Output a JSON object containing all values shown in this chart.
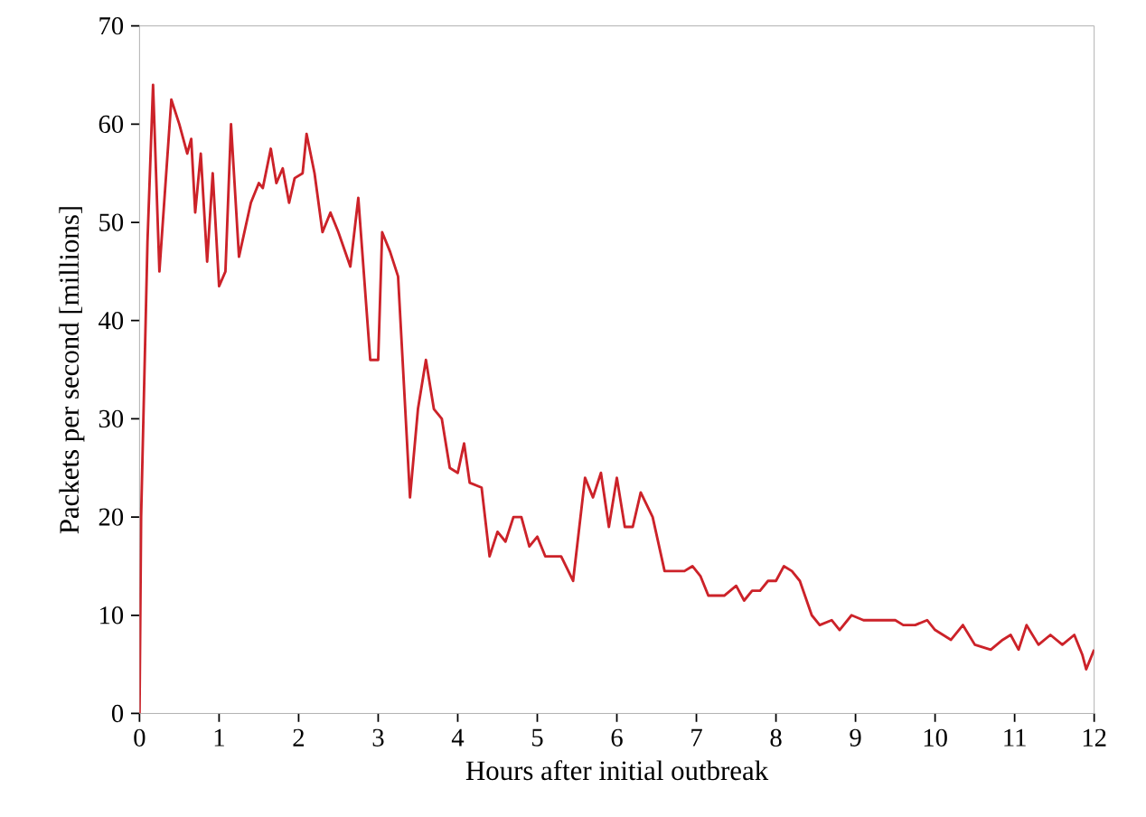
{
  "chart_data": {
    "type": "line",
    "xlabel": "Hours after initial outbreak",
    "ylabel": "Packets per second [millions]",
    "xlim": [
      0,
      12
    ],
    "ylim": [
      0,
      70
    ],
    "xticks": [
      0,
      1,
      2,
      3,
      4,
      5,
      6,
      7,
      8,
      9,
      10,
      11,
      12
    ],
    "yticks": [
      0,
      10,
      20,
      30,
      40,
      50,
      60,
      70
    ],
    "grid": false,
    "marker": "none",
    "line_style": "solid",
    "series": [
      {
        "color": "#cc2229",
        "x": [
          0,
          0.02,
          0.1,
          0.17,
          0.25,
          0.4,
          0.5,
          0.6,
          0.65,
          0.7,
          0.77,
          0.85,
          0.92,
          1.0,
          1.08,
          1.15,
          1.25,
          1.4,
          1.5,
          1.55,
          1.65,
          1.72,
          1.8,
          1.88,
          1.95,
          2.05,
          2.1,
          2.2,
          2.3,
          2.4,
          2.5,
          2.65,
          2.75,
          2.9,
          3.0,
          3.05,
          3.15,
          3.25,
          3.4,
          3.5,
          3.6,
          3.7,
          3.8,
          3.9,
          4.0,
          4.08,
          4.15,
          4.3,
          4.4,
          4.5,
          4.6,
          4.7,
          4.8,
          4.9,
          5.0,
          5.1,
          5.3,
          5.45,
          5.6,
          5.7,
          5.8,
          5.9,
          6.0,
          6.1,
          6.2,
          6.3,
          6.45,
          6.6,
          6.75,
          6.85,
          6.95,
          7.05,
          7.15,
          7.35,
          7.5,
          7.6,
          7.7,
          7.8,
          7.9,
          8.0,
          8.1,
          8.2,
          8.3,
          8.45,
          8.55,
          8.7,
          8.8,
          8.95,
          9.1,
          9.3,
          9.5,
          9.6,
          9.75,
          9.9,
          10.0,
          10.1,
          10.2,
          10.35,
          10.5,
          10.7,
          10.85,
          10.95,
          11.05,
          11.15,
          11.3,
          11.45,
          11.6,
          11.75,
          11.85,
          11.9,
          12.0
        ],
        "values": [
          0,
          20,
          48,
          64,
          45,
          62.5,
          60,
          57,
          58.5,
          51,
          57,
          46,
          55,
          43.5,
          45,
          60,
          46.5,
          52,
          54,
          53.5,
          57.5,
          54,
          55.5,
          52,
          54.5,
          55,
          59,
          55,
          49,
          51,
          49,
          45.5,
          52.5,
          36,
          36,
          49,
          47,
          44.5,
          22,
          31,
          36,
          31,
          30,
          25,
          24.5,
          27.5,
          23.5,
          23,
          16,
          18.5,
          17.5,
          20,
          20,
          17,
          18,
          16,
          16,
          13.5,
          24,
          22,
          24.5,
          19,
          24,
          19,
          19,
          22.5,
          20,
          14.5,
          14.5,
          14.5,
          15,
          14,
          12,
          12,
          13,
          11.5,
          12.5,
          12.5,
          13.5,
          13.5,
          15,
          14.5,
          13.5,
          10,
          9,
          9.5,
          8.5,
          10,
          9.5,
          9.5,
          9.5,
          9,
          9,
          9.5,
          8.5,
          8,
          7.5,
          9,
          7,
          6.5,
          7.5,
          8,
          6.5,
          9,
          7,
          8,
          7,
          8,
          6,
          4.5,
          6.5
        ]
      }
    ]
  }
}
